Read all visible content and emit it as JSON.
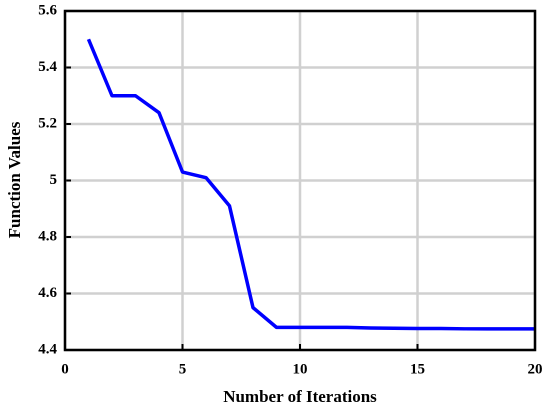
{
  "chart_data": {
    "type": "line",
    "x_label": "Number of Iterations",
    "y_label": "Function Values",
    "x": [
      1,
      2,
      3,
      4,
      5,
      6,
      7,
      8,
      9,
      10,
      11,
      12,
      13,
      14,
      15,
      16,
      17,
      18,
      19,
      20
    ],
    "series": [
      {
        "color": "#0000ff",
        "values": [
          5.5,
          5.3,
          5.3,
          5.24,
          5.03,
          5.01,
          4.91,
          4.55,
          4.48,
          4.48,
          4.48,
          4.48,
          4.478,
          4.477,
          4.476,
          4.476,
          4.475,
          4.475,
          4.475,
          4.475
        ]
      }
    ],
    "xlim": [
      0,
      20
    ],
    "xticks": [
      0,
      5,
      10,
      15,
      20
    ],
    "ylim": [
      4.4,
      5.6
    ],
    "yticks": [
      4.4,
      4.6,
      4.8,
      5,
      5.2,
      5.4,
      5.6
    ],
    "grid": true
  }
}
